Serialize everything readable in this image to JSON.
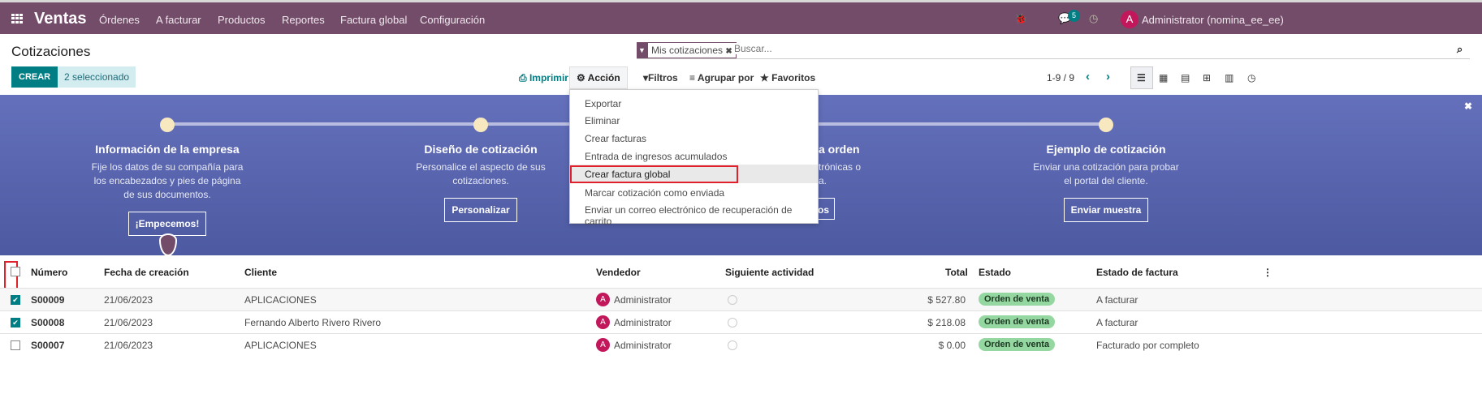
{
  "navbar": {
    "app_name": "Ventas",
    "menu": [
      "Órdenes",
      "A facturar",
      "Productos",
      "Reportes",
      "Factura global",
      "Configuración"
    ],
    "messages_count": "5",
    "user_initial": "A",
    "user_name": "Administrator (nomina_ee_ee)",
    "bg_color": "#734c69"
  },
  "page": {
    "title": "Cotizaciones",
    "create_label": "CREAR",
    "selected_label": "2 seleccionado",
    "print_label": "Imprimir",
    "action_label": "Acción",
    "filters_label": "Filtros",
    "group_label": "Agrupar por",
    "favorites_label": "Favoritos",
    "pager": "1-9 / 9"
  },
  "search": {
    "facet": "Mis cotizaciones",
    "placeholder": "Buscar..."
  },
  "action_menu": {
    "items": [
      "Exportar",
      "Eliminar",
      "Crear facturas",
      "Entrada de ingresos acumulados",
      "Crear factura global",
      "Marcar cotización como enviada",
      "Enviar un correo electrónico de recuperación de carrito"
    ],
    "highlighted": "Crear factura global"
  },
  "banner": {
    "steps": [
      {
        "title": "Información de la empresa",
        "desc": "Fije los datos de su compañía para los encabezados y pies de página de sus documentos.",
        "button": "¡Empecemos!"
      },
      {
        "title": "Diseño de cotización",
        "desc": "Personalice el aspecto de sus cotizaciones.",
        "button": "Personalizar"
      },
      {
        "title": "a orden",
        "desc1": "trónicas o",
        "desc2": "a.",
        "button": "os"
      },
      {
        "title": "Ejemplo de cotización",
        "desc": "Enviar una cotización para probar el portal del cliente.",
        "button": "Enviar muestra"
      }
    ]
  },
  "table": {
    "headers": [
      "Número",
      "Fecha de creación",
      "Cliente",
      "Vendedor",
      "Siguiente actividad",
      "Total",
      "Estado",
      "Estado de factura"
    ],
    "rows": [
      {
        "checked": true,
        "number": "S00009",
        "date": "21/06/2023",
        "client": "APLICACIONES",
        "seller": "Administrator",
        "seller_initial": "A",
        "total": "$ 527.80",
        "state": "Orden de venta",
        "invoice_state": "A facturar"
      },
      {
        "checked": true,
        "number": "S00008",
        "date": "21/06/2023",
        "client": "Fernando Alberto Rivero Rivero",
        "seller": "Administrator",
        "seller_initial": "A",
        "total": "$ 218.08",
        "state": "Orden de venta",
        "invoice_state": "A facturar"
      },
      {
        "checked": false,
        "number": "S00007",
        "date": "21/06/2023",
        "client": "APLICACIONES",
        "seller": "Administrator",
        "seller_initial": "A",
        "total": "$ 0.00",
        "state": "Orden de venta",
        "invoice_state": "Facturado por completo"
      }
    ]
  }
}
